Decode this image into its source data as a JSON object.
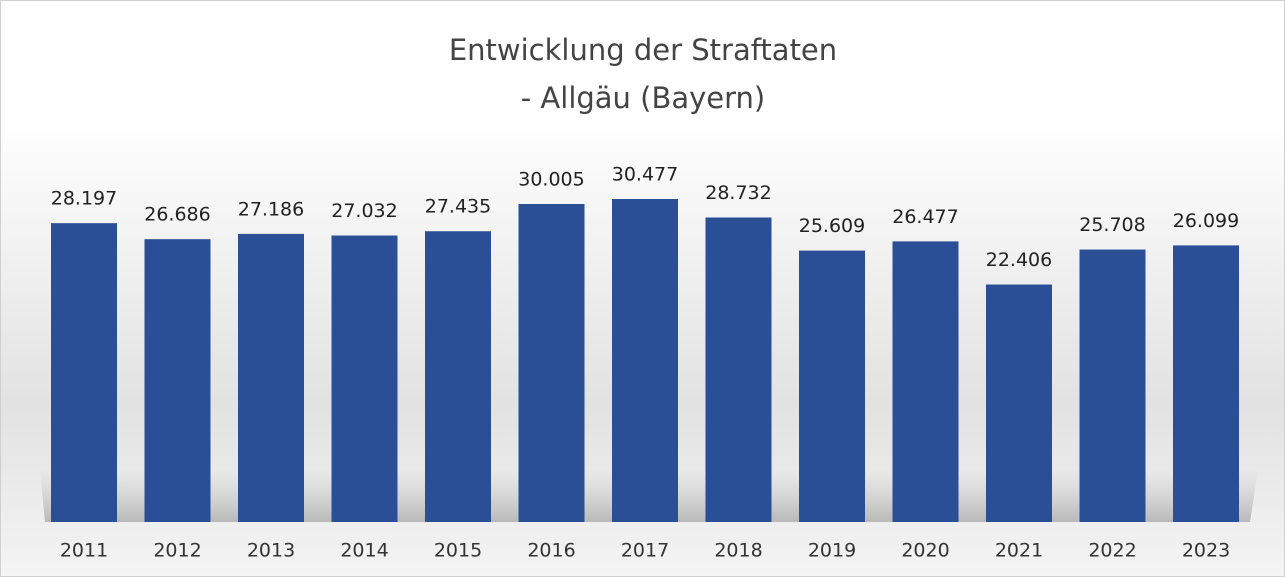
{
  "chart_data": {
    "type": "bar",
    "title": [
      "Entwicklung der Straftaten",
      "- Allgäu (Bayern)"
    ],
    "categories": [
      "2011",
      "2012",
      "2013",
      "2014",
      "2015",
      "2016",
      "2017",
      "2018",
      "2019",
      "2020",
      "2021",
      "2022",
      "2023"
    ],
    "values": [
      28197,
      26686,
      27186,
      27032,
      27435,
      30005,
      30477,
      28732,
      25609,
      26477,
      22406,
      25708,
      26099
    ],
    "value_labels": [
      "28.197",
      "26.686",
      "27.186",
      "27.032",
      "27.435",
      "30.005",
      "30.477",
      "28.732",
      "25.609",
      "26.477",
      "22.406",
      "25.708",
      "26.099"
    ],
    "color": "#2a4f96"
  }
}
